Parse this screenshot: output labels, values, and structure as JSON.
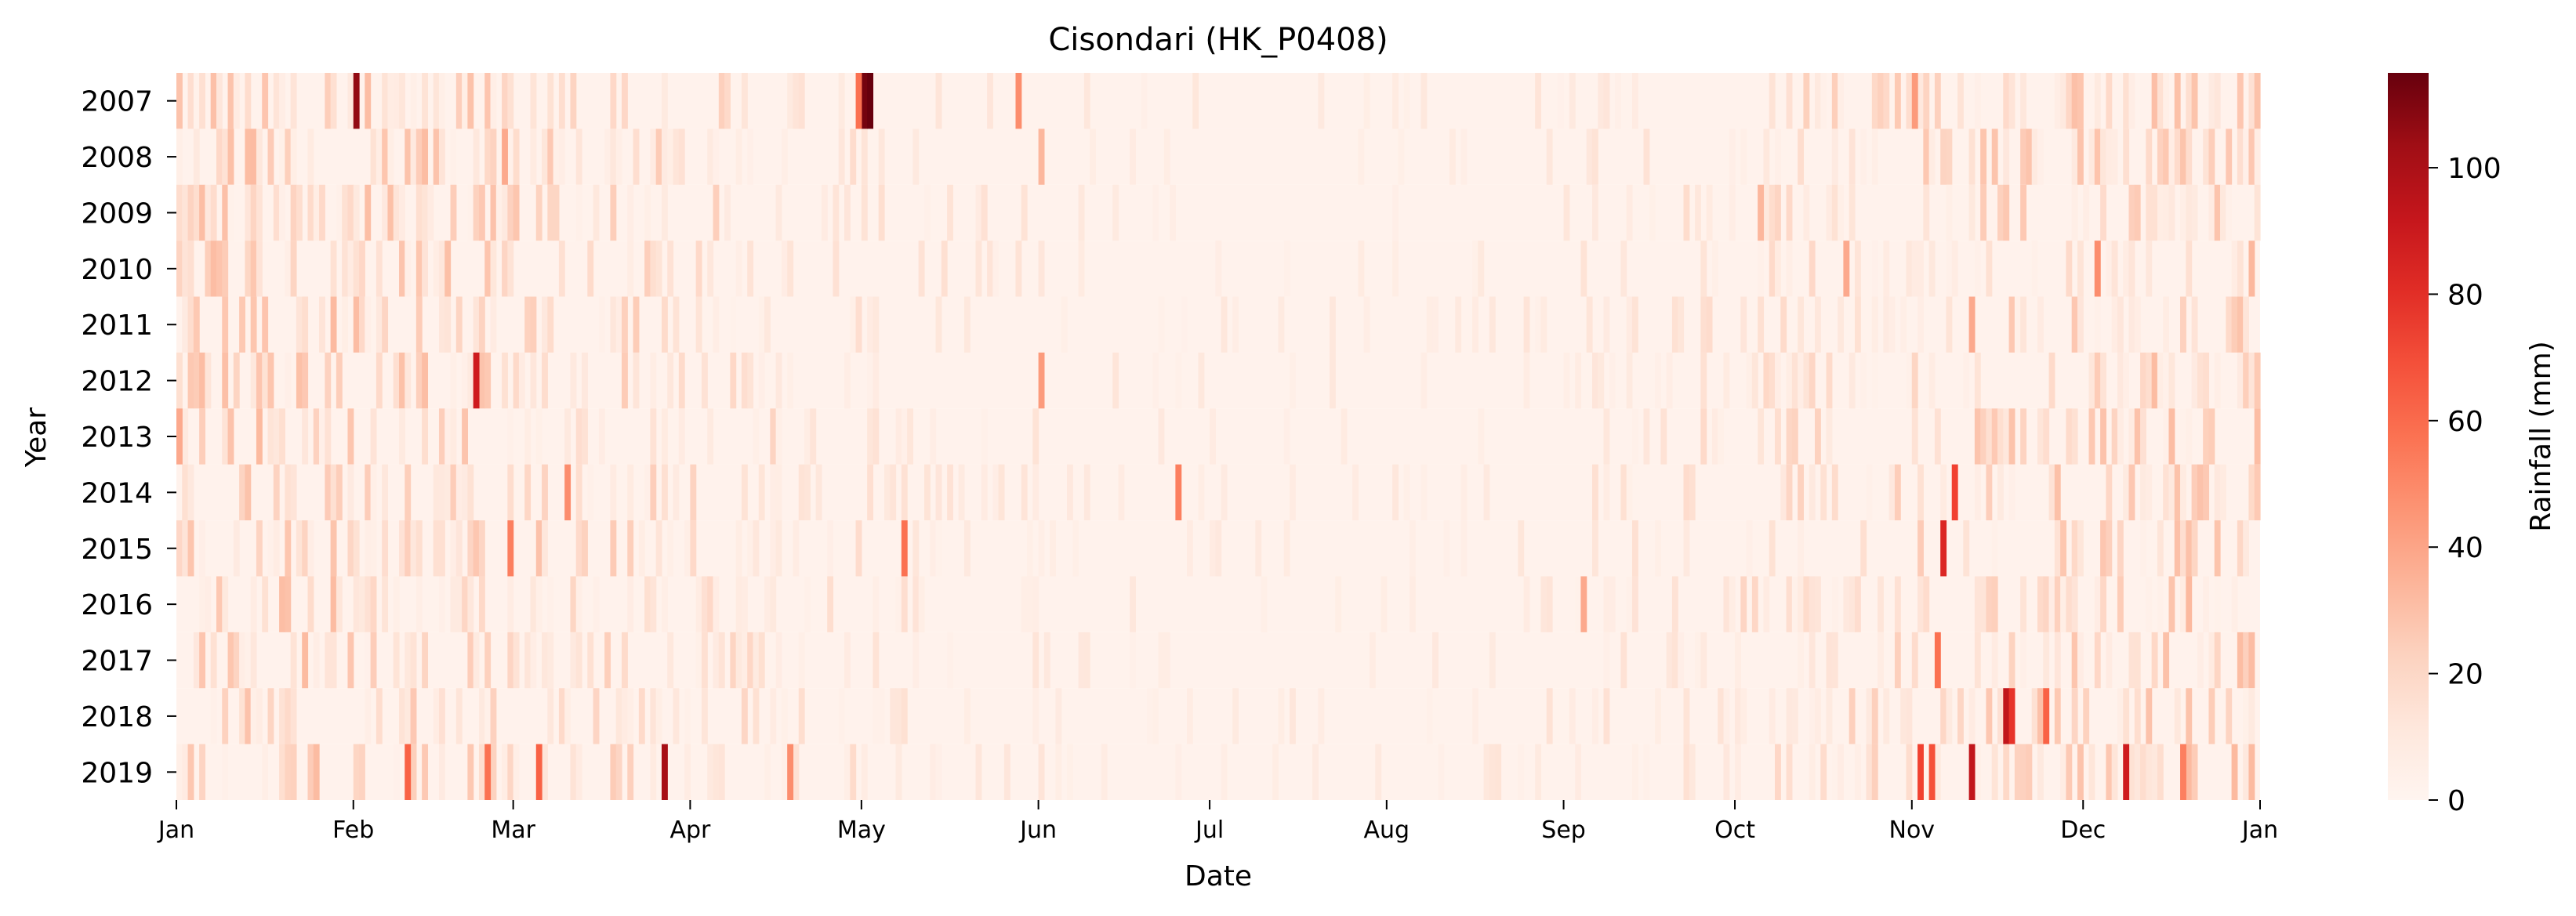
{
  "chart_data": {
    "type": "heatmap",
    "title": "Cisondari (HK_P0408)",
    "xlabel": "Date",
    "ylabel": "Year",
    "colorbar": {
      "label": "Rainfall (mm)",
      "ticks": [
        0,
        20,
        40,
        60,
        80,
        100
      ],
      "range": [
        0,
        115
      ],
      "colormap": "Reds",
      "colors": [
        "#fff5f0",
        "#fee0d2",
        "#fcbba1",
        "#fc9272",
        "#fb6a4a",
        "#ef3b2c",
        "#cb181d",
        "#a50f15",
        "#67000d"
      ]
    },
    "x_tick_labels": [
      "Jan",
      "Feb",
      "Mar",
      "Apr",
      "May",
      "Jun",
      "Jul",
      "Aug",
      "Sep",
      "Oct",
      "Nov",
      "Dec",
      "Jan"
    ],
    "years": [
      "2007",
      "2008",
      "2009",
      "2010",
      "2011",
      "2012",
      "2013",
      "2014",
      "2015",
      "2016",
      "2017",
      "2018",
      "2019"
    ],
    "notable_values_mm": [
      {
        "year": "2007",
        "date": "Feb 1",
        "value": 105
      },
      {
        "year": "2007",
        "date": "May 1",
        "value": 112
      },
      {
        "year": "2007",
        "date": "May 2",
        "value": 115
      },
      {
        "year": "2007",
        "date": "Apr 30",
        "value": 55
      },
      {
        "year": "2007",
        "date": "May 28",
        "value": 45
      },
      {
        "year": "2007",
        "date": "Nov 1",
        "value": 40
      },
      {
        "year": "2008",
        "date": "Jun 1",
        "value": 30
      },
      {
        "year": "2008",
        "date": "Feb 27",
        "value": 35
      },
      {
        "year": "2009",
        "date": "Oct 5",
        "value": 30
      },
      {
        "year": "2010",
        "date": "Dec 3",
        "value": 45
      },
      {
        "year": "2010",
        "date": "Oct 20",
        "value": 35
      },
      {
        "year": "2011",
        "date": "Nov 11",
        "value": 35
      },
      {
        "year": "2012",
        "date": "Feb 22",
        "value": 85
      },
      {
        "year": "2012",
        "date": "Jun 1",
        "value": 40
      },
      {
        "year": "2013",
        "date": "Jan 1",
        "value": 35
      },
      {
        "year": "2014",
        "date": "Nov 8",
        "value": 70
      },
      {
        "year": "2014",
        "date": "Jun 25",
        "value": 50
      },
      {
        "year": "2014",
        "date": "Mar 10",
        "value": 45
      },
      {
        "year": "2015",
        "date": "Nov 6",
        "value": 80
      },
      {
        "year": "2015",
        "date": "May 8",
        "value": 55
      },
      {
        "year": "2015",
        "date": "Feb 28",
        "value": 50
      },
      {
        "year": "2016",
        "date": "Sep 4",
        "value": 35
      },
      {
        "year": "2017",
        "date": "Nov 5",
        "value": 55
      },
      {
        "year": "2018",
        "date": "Nov 17",
        "value": 90
      },
      {
        "year": "2018",
        "date": "Nov 18",
        "value": 75
      },
      {
        "year": "2018",
        "date": "Nov 24",
        "value": 60
      },
      {
        "year": "2019",
        "date": "Mar 27",
        "value": 100
      },
      {
        "year": "2019",
        "date": "Nov 11",
        "value": 90
      },
      {
        "year": "2019",
        "date": "Dec 8",
        "value": 85
      },
      {
        "year": "2019",
        "date": "Nov 2",
        "value": 70
      },
      {
        "year": "2019",
        "date": "Nov 4",
        "value": 65
      },
      {
        "year": "2019",
        "date": "Feb 10",
        "value": 60
      },
      {
        "year": "2019",
        "date": "Feb 24",
        "value": 55
      },
      {
        "year": "2019",
        "date": "Mar 5",
        "value": 60
      },
      {
        "year": "2019",
        "date": "Apr 18",
        "value": 45
      },
      {
        "year": "2019",
        "date": "Dec 18",
        "value": 50
      }
    ],
    "background_range_mm": [
      0,
      20
    ],
    "grid": false,
    "legend": "colorbar-right"
  }
}
